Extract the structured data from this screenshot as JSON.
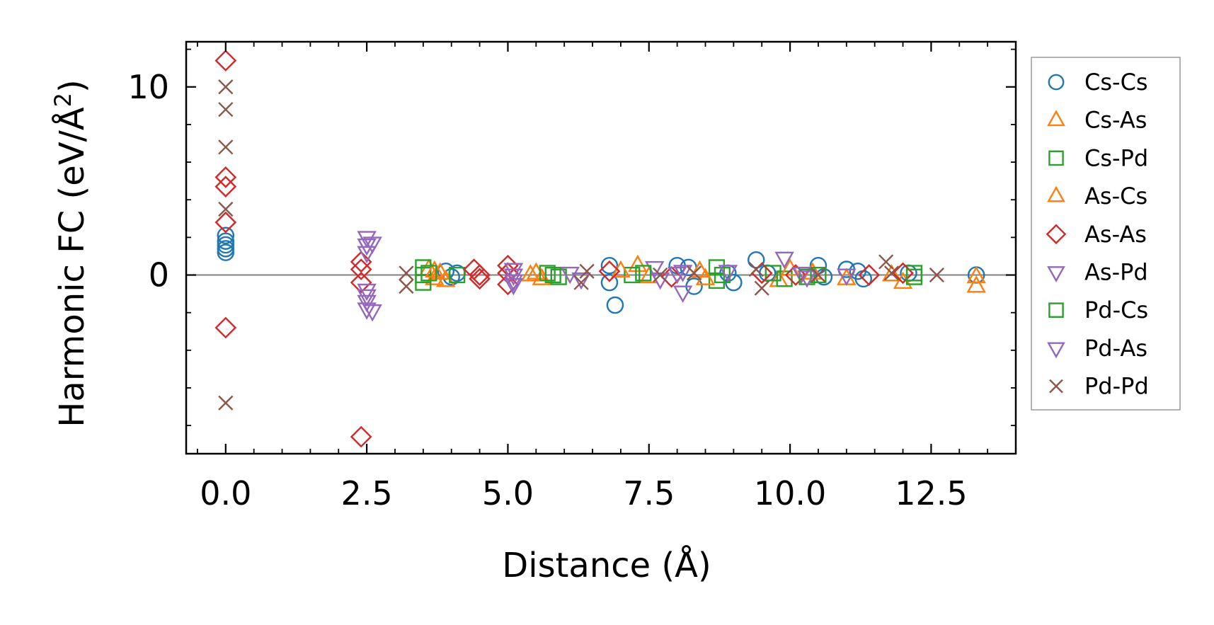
{
  "chart_data": {
    "type": "scatter",
    "xlabel": "Distance (Å)",
    "ylabel_main": "Harmonic FC (eV/Å",
    "ylabel_sup": "2",
    "ylabel_close": ")",
    "xlim": [
      -0.7,
      14.0
    ],
    "ylim": [
      -9.5,
      12.4
    ],
    "x_ticks": [
      0.0,
      2.5,
      5.0,
      7.5,
      10.0,
      12.5
    ],
    "x_tick_labels": [
      "0.0",
      "2.5",
      "5.0",
      "7.5",
      "10.0",
      "12.5"
    ],
    "y_ticks": [
      0,
      10
    ],
    "y_tick_labels": [
      "0",
      "10"
    ],
    "zero_line": true,
    "legend_position": "outside-right",
    "series": [
      {
        "name": "Cs-Cs",
        "marker": "circle",
        "color": "#1f77b4",
        "points": [
          [
            0.0,
            2.1
          ],
          [
            0.0,
            1.8
          ],
          [
            0.0,
            1.6
          ],
          [
            0.0,
            1.4
          ],
          [
            0.0,
            1.2
          ],
          [
            3.9,
            0.2
          ],
          [
            4.0,
            -0.1
          ],
          [
            4.1,
            0.1
          ],
          [
            6.8,
            0.5
          ],
          [
            6.8,
            -0.4
          ],
          [
            6.9,
            -1.6
          ],
          [
            8.0,
            0.5
          ],
          [
            8.2,
            0.4
          ],
          [
            8.3,
            -0.6
          ],
          [
            8.9,
            0.1
          ],
          [
            9.0,
            -0.4
          ],
          [
            9.4,
            0.8
          ],
          [
            9.6,
            0.1
          ],
          [
            10.5,
            0.5
          ],
          [
            10.6,
            -0.1
          ],
          [
            11.0,
            0.3
          ],
          [
            11.2,
            0.2
          ],
          [
            11.3,
            -0.2
          ],
          [
            12.1,
            0.1
          ],
          [
            13.3,
            0.0
          ]
        ]
      },
      {
        "name": "Cs-As",
        "marker": "triangle-up",
        "color": "#ff7f0e",
        "points": [
          [
            3.6,
            0.3
          ],
          [
            3.7,
            -0.2
          ],
          [
            3.8,
            0.1
          ],
          [
            3.9,
            -0.3
          ],
          [
            5.5,
            0.1
          ],
          [
            5.6,
            -0.2
          ],
          [
            7.3,
            0.5
          ],
          [
            7.5,
            -0.1
          ],
          [
            8.4,
            0.2
          ],
          [
            9.8,
            -0.3
          ],
          [
            10.4,
            0.1
          ],
          [
            11.0,
            -0.2
          ],
          [
            12.0,
            -0.4
          ],
          [
            13.3,
            -0.6
          ],
          [
            13.3,
            -0.1
          ]
        ]
      },
      {
        "name": "Cs-Pd",
        "marker": "square",
        "color": "#2ca02c",
        "points": [
          [
            3.5,
            0.4
          ],
          [
            3.5,
            0.0
          ],
          [
            3.5,
            -0.4
          ],
          [
            4.1,
            0.0
          ],
          [
            5.7,
            0.1
          ],
          [
            5.9,
            -0.1
          ],
          [
            7.2,
            0.0
          ],
          [
            8.7,
            0.4
          ],
          [
            8.7,
            -0.3
          ],
          [
            9.7,
            0.1
          ],
          [
            9.9,
            -0.2
          ],
          [
            10.5,
            0.0
          ],
          [
            12.2,
            0.1
          ]
        ]
      },
      {
        "name": "As-Cs",
        "marker": "triangle-up",
        "color": "#ff7f0e",
        "points": [
          [
            3.7,
            0.2
          ],
          [
            5.4,
            0.0
          ],
          [
            7.0,
            0.2
          ],
          [
            8.5,
            -0.2
          ],
          [
            10.0,
            0.3
          ],
          [
            11.8,
            0.0
          ]
        ]
      },
      {
        "name": "As-As",
        "marker": "diamond",
        "color": "#d62728",
        "points": [
          [
            0.0,
            11.4
          ],
          [
            0.0,
            5.2
          ],
          [
            0.0,
            4.7
          ],
          [
            0.0,
            2.8
          ],
          [
            0.0,
            -2.8
          ],
          [
            2.4,
            0.7
          ],
          [
            2.4,
            0.3
          ],
          [
            2.4,
            -0.4
          ],
          [
            2.4,
            -8.6
          ],
          [
            4.4,
            0.3
          ],
          [
            4.5,
            0.0
          ],
          [
            4.5,
            -0.2
          ],
          [
            5.0,
            0.5
          ],
          [
            5.0,
            0.1
          ],
          [
            5.0,
            -0.5
          ],
          [
            6.8,
            0.2
          ],
          [
            7.9,
            -0.1
          ],
          [
            9.5,
            0.1
          ],
          [
            10.1,
            0.0
          ],
          [
            11.4,
            0.0
          ],
          [
            12.0,
            0.1
          ]
        ]
      },
      {
        "name": "As-Pd",
        "marker": "triangle-down",
        "color": "#9467bd",
        "points": [
          [
            2.5,
            2.0
          ],
          [
            2.5,
            1.6
          ],
          [
            2.5,
            1.2
          ],
          [
            2.5,
            -0.8
          ],
          [
            2.5,
            -1.1
          ],
          [
            2.5,
            -1.4
          ],
          [
            2.5,
            -1.8
          ],
          [
            5.1,
            0.3
          ],
          [
            5.1,
            0.0
          ],
          [
            5.1,
            -0.3
          ],
          [
            6.1,
            0.1
          ],
          [
            7.6,
            0.4
          ],
          [
            8.1,
            -0.9
          ],
          [
            8.1,
            0.2
          ],
          [
            9.9,
            0.9
          ],
          [
            10.2,
            0.1
          ],
          [
            11.0,
            0.0
          ]
        ]
      },
      {
        "name": "Pd-Cs",
        "marker": "square",
        "color": "#2ca02c",
        "points": [
          [
            3.6,
            0.1
          ],
          [
            5.8,
            0.0
          ],
          [
            7.4,
            0.1
          ],
          [
            8.8,
            0.0
          ],
          [
            10.3,
            -0.1
          ],
          [
            12.2,
            -0.1
          ]
        ]
      },
      {
        "name": "Pd-As",
        "marker": "triangle-down",
        "color": "#9467bd",
        "points": [
          [
            2.6,
            1.7
          ],
          [
            2.6,
            -1.9
          ],
          [
            5.1,
            -0.5
          ],
          [
            6.3,
            -0.2
          ],
          [
            7.7,
            -0.2
          ],
          [
            8.0,
            0.1
          ],
          [
            8.9,
            0.2
          ],
          [
            10.3,
            -0.1
          ]
        ]
      },
      {
        "name": "Pd-Pd",
        "marker": "x",
        "color": "#8c564b",
        "points": [
          [
            0.0,
            10.0
          ],
          [
            0.0,
            8.8
          ],
          [
            0.0,
            6.8
          ],
          [
            0.0,
            3.5
          ],
          [
            0.0,
            -6.8
          ],
          [
            3.2,
            0.1
          ],
          [
            3.2,
            -0.6
          ],
          [
            6.3,
            -0.4
          ],
          [
            6.4,
            0.2
          ],
          [
            7.7,
            0.0
          ],
          [
            8.3,
            0.1
          ],
          [
            9.4,
            0.3
          ],
          [
            9.5,
            -0.7
          ],
          [
            10.5,
            0.0
          ],
          [
            11.7,
            0.7
          ],
          [
            11.8,
            0.1
          ],
          [
            12.6,
            0.0
          ]
        ]
      }
    ]
  }
}
